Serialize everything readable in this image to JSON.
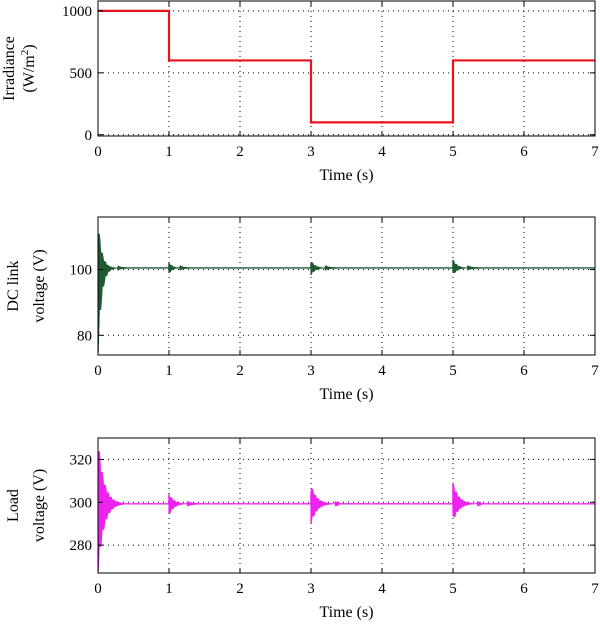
{
  "chart_data": [
    {
      "type": "line",
      "xlabel": "Time (s)",
      "ylabel": [
        "Irradiance",
        "(W/m",
        "2",
        ")"
      ],
      "xlim": [
        0,
        7
      ],
      "ylim": [
        -10,
        1080
      ],
      "xticks": [
        0,
        1,
        2,
        3,
        4,
        5,
        6,
        7
      ],
      "yticks": [
        0,
        500,
        1000
      ],
      "grid": true,
      "series": [
        {
          "color": "#e8121c",
          "x": [
            0,
            1,
            1,
            3,
            3,
            5,
            5,
            7
          ],
          "values": [
            1000,
            1000,
            600,
            600,
            100,
            100,
            600,
            600
          ]
        }
      ]
    },
    {
      "type": "line",
      "xlabel": "Time (s)",
      "ylabel": [
        "DC link",
        "voltage (V)"
      ],
      "xlim": [
        0,
        7
      ],
      "ylim": [
        74,
        116
      ],
      "xticks": [
        0,
        1,
        2,
        3,
        4,
        5,
        6,
        7
      ],
      "yticks": [
        80,
        100
      ],
      "grid": true,
      "series": [
        {
          "color": "#1f5a34",
          "steady": 100.5,
          "transients": [
            {
              "t": 0,
              "min": 74,
              "max": 115,
              "decay": 0.05
            },
            {
              "t": 1,
              "min": 98.8,
              "max": 102.2,
              "decay": 0.05
            },
            {
              "t": 3,
              "min": 98.3,
              "max": 102.7,
              "decay": 0.06
            },
            {
              "t": 5,
              "min": 98.3,
              "max": 103,
              "decay": 0.06
            }
          ]
        }
      ]
    },
    {
      "type": "line",
      "xlabel": "Time (s)",
      "ylabel": [
        "Load",
        "voltage (V)"
      ],
      "xlim": [
        0,
        7
      ],
      "ylim": [
        267,
        330
      ],
      "xticks": [
        0,
        1,
        2,
        3,
        4,
        5,
        6,
        7
      ],
      "yticks": [
        280,
        300,
        320
      ],
      "grid": true,
      "series": [
        {
          "color": "#ee22ee",
          "steady": 299.3,
          "transients": [
            {
              "t": 0,
              "min": 267,
              "max": 330,
              "decay": 0.08
            },
            {
              "t": 1,
              "min": 294,
              "max": 304,
              "decay": 0.07
            },
            {
              "t": 3,
              "min": 290,
              "max": 308,
              "decay": 0.08
            },
            {
              "t": 5,
              "min": 291,
              "max": 309,
              "decay": 0.08
            }
          ]
        }
      ]
    }
  ]
}
